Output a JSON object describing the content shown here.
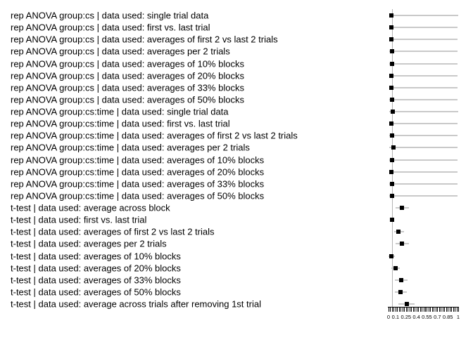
{
  "figure": {
    "background": "#ffffff",
    "text_color": "#000000",
    "marker_color": "#000000",
    "interval_color": "#c9c9c9",
    "reference_line_color": "#b3b3b3",
    "axis_color": "#000000"
  },
  "chart_data": {
    "type": "scatter",
    "style": "forest-plot: black square point estimate (median p-value) with light-gray horizontal interval bar per analysis approach",
    "title": "",
    "xlabel": "",
    "ylabel": "",
    "xlim": [
      0,
      1
    ],
    "x_tick_labels": [
      "0",
      "0.1",
      "0.25",
      "0.4",
      "0.55",
      "0.7",
      "0.85",
      "1"
    ],
    "x_tick_values": [
      0,
      0.1,
      0.25,
      0.4,
      0.55,
      0.7,
      0.85,
      1
    ],
    "x_minor_tick_step": 0.025,
    "reference_line_x": 0.05,
    "grid": false,
    "legend": false,
    "rows": [
      {
        "label": "rep ANOVA group:cs | data used: single trial data",
        "median": 0.04,
        "lo": 0.01,
        "hi": 1.0
      },
      {
        "label": "rep ANOVA group:cs | data used: first vs. last trial",
        "median": 0.04,
        "lo": 0.01,
        "hi": 0.99
      },
      {
        "label": "rep ANOVA group:cs | data used: averages of first 2 vs last 2 trials",
        "median": 0.04,
        "lo": 0.01,
        "hi": 0.99
      },
      {
        "label": "rep ANOVA group:cs | data used: averages per 2 trials",
        "median": 0.05,
        "lo": 0.01,
        "hi": 0.99
      },
      {
        "label": "rep ANOVA group:cs | data used: averages of 10% blocks",
        "median": 0.05,
        "lo": 0.01,
        "hi": 0.99
      },
      {
        "label": "rep ANOVA group:cs | data used: averages of 20% blocks",
        "median": 0.04,
        "lo": 0.01,
        "hi": 0.99
      },
      {
        "label": "rep ANOVA group:cs | data used: averages of 33% blocks",
        "median": 0.04,
        "lo": 0.01,
        "hi": 0.99
      },
      {
        "label": "rep ANOVA group:cs | data used: averages of 50% blocks",
        "median": 0.05,
        "lo": 0.01,
        "hi": 0.99
      },
      {
        "label": "rep ANOVA group:cs:time | data used: single trial data",
        "median": 0.06,
        "lo": 0.01,
        "hi": 1.0
      },
      {
        "label": "rep ANOVA group:cs:time | data used: first vs. last trial",
        "median": 0.04,
        "lo": 0.01,
        "hi": 0.99
      },
      {
        "label": "rep ANOVA group:cs:time | data used: averages of first 2 vs last 2 trials",
        "median": 0.05,
        "lo": 0.01,
        "hi": 0.99
      },
      {
        "label": "rep ANOVA group:cs:time | data used: averages per 2 trials",
        "median": 0.07,
        "lo": 0.01,
        "hi": 0.99
      },
      {
        "label": "rep ANOVA group:cs:time | data used: averages of 10% blocks",
        "median": 0.05,
        "lo": 0.01,
        "hi": 0.99
      },
      {
        "label": "rep ANOVA group:cs:time | data used: averages of 20% blocks",
        "median": 0.04,
        "lo": 0.01,
        "hi": 0.99
      },
      {
        "label": "rep ANOVA group:cs:time | data used: averages of 33% blocks",
        "median": 0.05,
        "lo": 0.01,
        "hi": 0.99
      },
      {
        "label": "rep ANOVA group:cs:time | data used: averages of 50% blocks",
        "median": 0.05,
        "lo": 0.01,
        "hi": 0.99
      },
      {
        "label": "t-test | data used: average across block",
        "median": 0.19,
        "lo": 0.1,
        "hi": 0.29
      },
      {
        "label": "t-test | data used: first vs. last trial",
        "median": 0.05,
        "lo": 0.02,
        "hi": 0.07
      },
      {
        "label": "t-test | data used: averages of first 2 vs last 2 trials",
        "median": 0.14,
        "lo": 0.08,
        "hi": 0.22
      },
      {
        "label": "t-test | data used: averages per 2 trials",
        "median": 0.19,
        "lo": 0.1,
        "hi": 0.29
      },
      {
        "label": "t-test | data used: averages of 10% blocks",
        "median": 0.04,
        "lo": 0.0,
        "hi": 0.09
      },
      {
        "label": "t-test | data used: averages of 20% blocks",
        "median": 0.1,
        "lo": 0.04,
        "hi": 0.16
      },
      {
        "label": "t-test | data used: averages of 33% blocks",
        "median": 0.18,
        "lo": 0.09,
        "hi": 0.27
      },
      {
        "label": "t-test | data used: averages of 50% blocks",
        "median": 0.17,
        "lo": 0.09,
        "hi": 0.26
      },
      {
        "label": "t-test | data used: average across trials after removing 1st trial",
        "median": 0.26,
        "lo": 0.14,
        "hi": 0.37
      }
    ]
  }
}
